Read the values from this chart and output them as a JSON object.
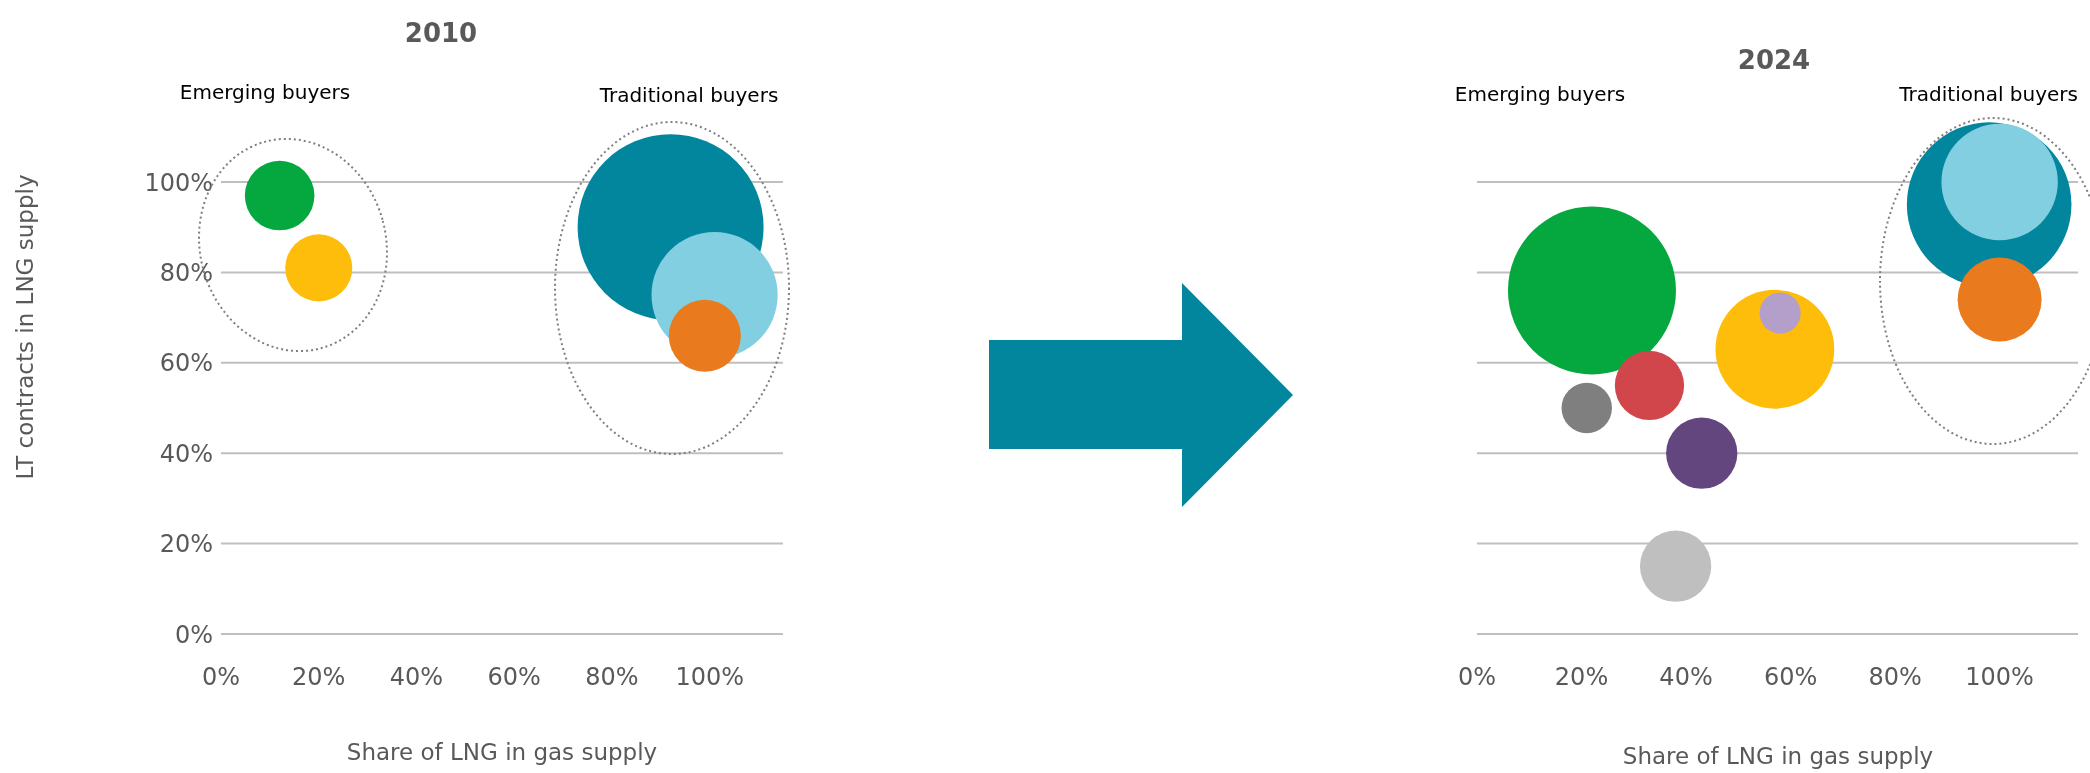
{
  "chart_data": [
    {
      "type": "bubble",
      "title": "2010",
      "xlabel": "Share of LNG in gas supply",
      "ylabel": "LT contracts in LNG supply",
      "annotations": [
        "Emerging buyers",
        "Traditional buyers"
      ],
      "x": [
        12,
        20,
        92,
        101,
        99
      ],
      "values": [
        97,
        81,
        90,
        75,
        66
      ],
      "sizes": [
        0.14,
        0.13,
        1,
        0.46,
        0.15
      ],
      "colors": [
        "#05a83f",
        "#fdbd0a",
        "#02869e",
        "#82cfe2",
        "#e97a1d"
      ],
      "xlim": [
        0,
        115
      ],
      "ylim": [
        0,
        100
      ],
      "xticks": [
        {
          "value": 0,
          "label": "0%"
        },
        {
          "value": 20,
          "label": "20%"
        },
        {
          "value": 40,
          "label": "40%"
        },
        {
          "value": 60,
          "label": "60%"
        },
        {
          "value": 80,
          "label": "80%"
        },
        {
          "value": 100,
          "label": "100%"
        }
      ],
      "yticks": [
        {
          "value": 0,
          "label": "0%"
        },
        {
          "value": 20,
          "label": "20%"
        },
        {
          "value": 40,
          "label": "40%"
        },
        {
          "value": 60,
          "label": "60%"
        },
        {
          "value": 80,
          "label": "80%"
        },
        {
          "value": 100,
          "label": "100%"
        }
      ],
      "grid": "y"
    },
    {
      "type": "bubble",
      "title": "2024",
      "xlabel": "Share of LNG in gas supply",
      "annotations": [
        "Emerging buyers",
        "Traditional buyers"
      ],
      "x": [
        22,
        33,
        21,
        43,
        38,
        57,
        58,
        98,
        100,
        100
      ],
      "values": [
        76,
        55,
        50,
        40,
        15,
        63,
        71,
        95,
        100,
        74
      ],
      "sizes": [
        1,
        0.17,
        0.09,
        0.18,
        0.18,
        0.5,
        0.06,
        0.96,
        0.48,
        0.25
      ],
      "colors": [
        "#05a83f",
        "#d0464a",
        "#7f7f7f",
        "#63467d",
        "#bfbfbf",
        "#fdbd0a",
        "#b49fcb",
        "#02869e",
        "#82cfe2",
        "#e97a1d"
      ],
      "xlim": [
        0,
        115
      ],
      "ylim": [
        0,
        100
      ],
      "xticks": [
        {
          "value": 0,
          "label": "0%"
        },
        {
          "value": 20,
          "label": "20%"
        },
        {
          "value": 40,
          "label": "40%"
        },
        {
          "value": 60,
          "label": "60%"
        },
        {
          "value": 80,
          "label": "80%"
        },
        {
          "value": 100,
          "label": "100%"
        }
      ],
      "yticks": [
        0,
        20,
        40,
        60,
        80,
        100
      ],
      "tick_labels": "x",
      "grid": "y"
    }
  ]
}
